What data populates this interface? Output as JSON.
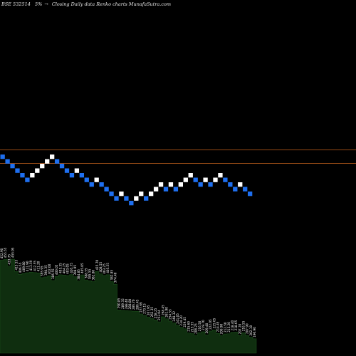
{
  "header": {
    "symbol": "BSE 532514",
    "change": "5%",
    "arrow": "→",
    "caption": "Closing Daily data Renko charts MunafaSutra.com"
  },
  "colors": {
    "background": "#000000",
    "up_brick": "#ffffff",
    "down_brick": "#1e6ff0",
    "reference_line": "#c8641e",
    "volume_area": "#0f2e0f",
    "volume_edge": "#1a4d1a"
  },
  "chart_data": [
    {
      "type": "renko",
      "brick_direction_sequence": [
        "down",
        "down",
        "down",
        "down",
        "down",
        "down",
        "up",
        "up",
        "up",
        "up",
        "up",
        "down",
        "down",
        "down",
        "down",
        "up",
        "down",
        "down",
        "down",
        "up",
        "down",
        "down",
        "down",
        "down",
        "up",
        "down",
        "down",
        "up",
        "up",
        "down",
        "up",
        "up",
        "up",
        "down",
        "up",
        "down",
        "up",
        "up",
        "up",
        "down",
        "down",
        "up",
        "down",
        "up",
        "up",
        "down",
        "down",
        "down",
        "up",
        "down",
        "down"
      ],
      "brick_level_sequence": [
        0,
        -1,
        -2,
        -3,
        -4,
        -5,
        -4,
        -3,
        -2,
        -1,
        0,
        -1,
        -2,
        -3,
        -4,
        -3,
        -4,
        -5,
        -6,
        -5,
        -6,
        -7,
        -8,
        -9,
        -8,
        -9,
        -10,
        -9,
        -8,
        -9,
        -8,
        -7,
        -6,
        -7,
        -6,
        -7,
        -6,
        -5,
        -4,
        -5,
        -6,
        -5,
        -6,
        -5,
        -4,
        -5,
        -6,
        -7,
        -6,
        -7,
        -8
      ],
      "reference_lines": [
        "upper",
        "lower"
      ],
      "grid": false
    },
    {
      "type": "area",
      "name": "volume",
      "values_in_order": [
        "452.90",
        "455.55",
        "433.75",
        "455.95",
        "415.55",
        "406.55",
        "409.80",
        "411.90",
        "413.59",
        "412.55",
        "411.20",
        "395.95",
        "398.35",
        "402.00",
        "386.55",
        "400.05",
        "405.35",
        "404.25",
        "403.05",
        "405.75",
        "398.95",
        "384.85",
        "405.05",
        "388.55",
        "385.55",
        "382.80",
        "415.70",
        "408.55",
        "403.25",
        "405.55",
        "382.85",
        "374.40",
        "290.85",
        "289.35",
        "288.40",
        "288.00",
        "286.70",
        "286.45",
        "277.69",
        "273.15",
        "267.95",
        "262.35",
        "258.25",
        "252.04",
        "268.45",
        "261.90",
        "254.55",
        "248.32",
        "241.05",
        "234.20",
        "229.45",
        "215.60",
        "213.55",
        "208.25",
        "216.50",
        "219.70",
        "209.40",
        "222.05",
        "225.65",
        "214.45",
        "206.90",
        "212.50",
        "213.20",
        "218.40",
        "218.65",
        "207.20",
        "216.55",
        "207.90",
        "202.10",
        "196.90"
      ],
      "grid": false
    }
  ]
}
